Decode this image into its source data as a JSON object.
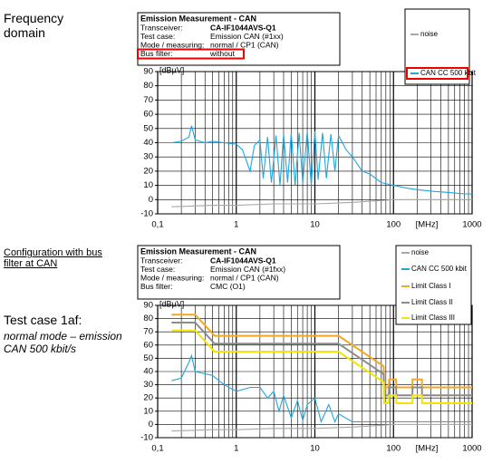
{
  "side_text": {
    "heading": "Frequency domain",
    "config": "Configuration with bus filter at CAN",
    "test_case": "Test case 1af:",
    "mode": "normal mode – emission CAN 500 kbit/s"
  },
  "chart_data": [
    {
      "type": "line",
      "info_title": "Emission Measurement - CAN",
      "info_rows": [
        [
          "Transceiver:",
          "CA-IF1044AVS-Q1"
        ],
        [
          "Test case:",
          "Emission CAN (#1xx)"
        ],
        [
          "Mode / measuring:",
          "normal / CP1 (CAN)"
        ],
        [
          "Bus filter:",
          "without"
        ]
      ],
      "highlight_row": 3,
      "highlight_legend": 1,
      "y_label": "[dBµV]",
      "x_label": "[MHz]",
      "x_log": true,
      "grid": true,
      "xlim": [
        0.1,
        1000
      ],
      "xticks": [
        {
          "value": 0.1,
          "label": "0,1"
        },
        1,
        10,
        100,
        1000
      ],
      "ylim": [
        -10,
        90
      ],
      "yticks": [
        -10,
        0,
        10,
        20,
        30,
        40,
        50,
        60,
        70,
        80,
        90
      ],
      "series": [
        {
          "name": "noise",
          "color": "#a8a8a8",
          "x": [
            0.15,
            0.5,
            1,
            3,
            10,
            30,
            100,
            300,
            1000
          ],
          "values": [
            -5,
            -4,
            -4,
            -3,
            -3,
            -2,
            0,
            0,
            0
          ]
        },
        {
          "name": "CAN CC 500 kbit",
          "color": "#1ea7e1",
          "x": [
            0.15,
            0.2,
            0.25,
            0.27,
            0.3,
            0.4,
            0.5,
            0.7,
            1,
            1.2,
            1.5,
            1.7,
            2,
            2.2,
            2.5,
            2.8,
            3.2,
            3.6,
            4,
            4.5,
            5,
            5.6,
            6.3,
            7,
            8,
            9,
            10,
            11,
            12.5,
            14,
            16,
            18,
            20,
            25,
            30,
            40,
            50,
            70,
            100,
            150,
            200,
            300,
            500,
            800,
            1000
          ],
          "values": [
            40,
            41,
            44,
            52,
            42,
            40,
            41,
            40,
            39,
            35,
            20,
            38,
            42,
            15,
            44,
            12,
            45,
            10,
            46,
            12,
            47,
            10,
            47,
            12,
            48,
            10,
            48,
            14,
            47,
            15,
            46,
            20,
            45,
            35,
            30,
            20,
            18,
            12,
            10,
            8,
            7,
            6,
            5,
            4,
            4
          ]
        }
      ]
    },
    {
      "type": "line",
      "info_title": "Emission Measurement - CAN",
      "info_rows": [
        [
          "Transceiver:",
          "CA-IF1044AVS-Q1"
        ],
        [
          "Test case:",
          "Emission CAN (#1fxx)"
        ],
        [
          "Mode / measuring:",
          "normal / CP1 (CAN)"
        ],
        [
          "Bus filter:",
          "CMC (O1)"
        ]
      ],
      "y_label": "[dBµV]",
      "x_label": "[MHz]",
      "x_log": true,
      "grid": true,
      "xlim": [
        0.1,
        1000
      ],
      "xticks": [
        {
          "value": 0.1,
          "label": "0,1"
        },
        1,
        10,
        100,
        1000
      ],
      "ylim": [
        -10,
        90
      ],
      "yticks": [
        -10,
        0,
        10,
        20,
        30,
        40,
        50,
        60,
        70,
        80,
        90
      ],
      "series": [
        {
          "name": "noise",
          "color": "#a8a8a8",
          "x": [
            0.15,
            0.5,
            1,
            3,
            10,
            30,
            100,
            300,
            1000
          ],
          "values": [
            -5,
            -4,
            -4,
            -3,
            -3,
            -2,
            0,
            0,
            0
          ]
        },
        {
          "name": "CAN CC 500 kbit",
          "color": "#1ea7e1",
          "x": [
            0.15,
            0.2,
            0.25,
            0.27,
            0.3,
            0.5,
            0.7,
            1,
            1.5,
            2,
            2.5,
            3,
            3.5,
            4,
            5,
            6,
            7,
            8,
            10,
            12,
            15,
            18,
            20,
            30,
            50,
            100,
            1000
          ],
          "values": [
            33,
            35,
            47,
            52,
            40,
            37,
            30,
            25,
            28,
            28,
            20,
            25,
            10,
            22,
            5,
            18,
            3,
            15,
            20,
            2,
            15,
            2,
            8,
            2,
            2,
            2,
            2
          ]
        },
        {
          "name": "Limit Class I",
          "color": "#f5a623",
          "x": [
            0.15,
            0.3,
            0.53,
            20,
            75,
            76,
            87,
            88,
            108,
            109,
            174,
            175,
            230,
            231,
            1000
          ],
          "values": [
            83,
            83,
            67,
            67,
            44,
            28,
            28,
            34,
            34,
            28,
            28,
            34,
            34,
            28,
            28
          ]
        },
        {
          "name": "Limit Class II",
          "color": "#8c8c8c",
          "x": [
            0.15,
            0.3,
            0.53,
            20,
            75,
            76,
            87,
            88,
            108,
            109,
            174,
            175,
            230,
            231,
            1000
          ],
          "values": [
            77,
            77,
            61,
            61,
            38,
            22,
            22,
            28,
            28,
            22,
            22,
            28,
            28,
            22,
            22
          ]
        },
        {
          "name": "Limit Class III",
          "color": "#f2e600",
          "x": [
            0.15,
            0.3,
            0.53,
            20,
            75,
            76,
            87,
            88,
            108,
            109,
            174,
            175,
            230,
            231,
            1000
          ],
          "values": [
            71,
            71,
            55,
            55,
            32,
            16,
            16,
            22,
            22,
            16,
            16,
            22,
            22,
            16,
            16
          ]
        }
      ]
    }
  ]
}
